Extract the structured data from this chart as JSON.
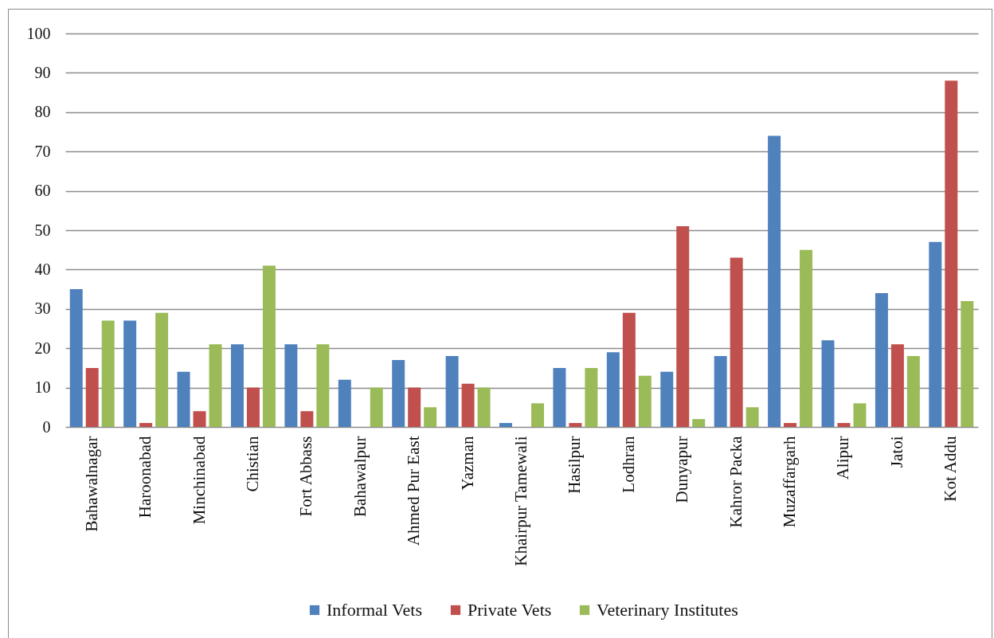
{
  "chart_data": {
    "type": "bar",
    "categories": [
      "Bahawalnagar",
      "Haroonabad",
      "Minchinabad",
      "Chistian",
      "Fort Abbass",
      "Bahawalpur",
      "Ahmed Pur East",
      "Yazman",
      "Khairpur Tamewali",
      "Hasilpur",
      "Lodhran",
      "Dunyapur",
      "Kahror Packa",
      "Muzaffargarh",
      "Alipur",
      "Jatoi",
      "Kot Addu"
    ],
    "series": [
      {
        "name": "Informal Vets",
        "color": "#4f81bd",
        "values": [
          35,
          27,
          14,
          21,
          21,
          12,
          17,
          18,
          1,
          15,
          19,
          14,
          18,
          74,
          22,
          34,
          47
        ]
      },
      {
        "name": "Private Vets",
        "color": "#c0504d",
        "values": [
          15,
          1,
          4,
          10,
          4,
          0,
          10,
          11,
          0,
          1,
          29,
          51,
          43,
          1,
          1,
          21,
          88
        ]
      },
      {
        "name": "Veterinary Institutes",
        "color": "#9bbb59",
        "values": [
          27,
          29,
          21,
          41,
          21,
          10,
          5,
          10,
          6,
          15,
          13,
          2,
          5,
          45,
          6,
          18,
          32
        ]
      }
    ],
    "ylim": [
      0,
      100
    ],
    "yticks": [
      0,
      10,
      20,
      30,
      40,
      50,
      60,
      70,
      80,
      90,
      100
    ],
    "grid": "y",
    "legend": "bottom"
  }
}
